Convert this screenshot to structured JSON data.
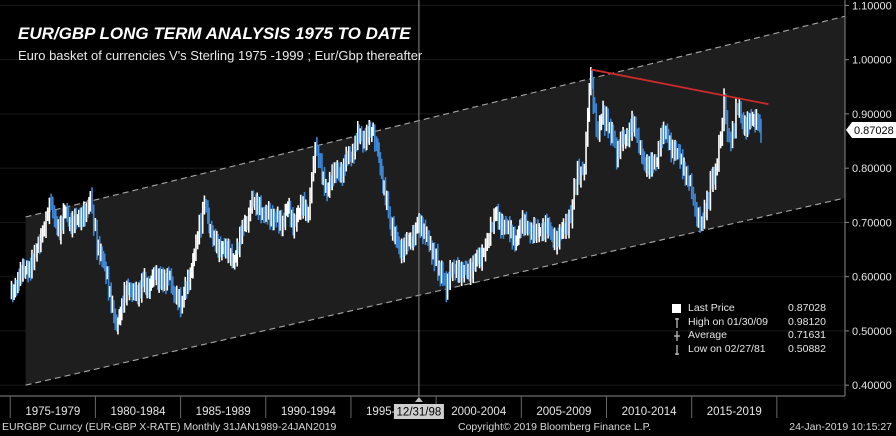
{
  "chart_data": {
    "type": "line",
    "title": "EUR/GBP LONG TERM ANALYSIS 1975 TO DATE",
    "subtitle": "Euro basket of currencies V's Sterling 1975 -1999 ; Eur/Gbp thereafter",
    "ylim": [
      0.38,
      1.11
    ],
    "yticks": [
      "0.40000",
      "0.50000",
      "0.60000",
      "0.70000",
      "0.80000",
      "0.90000",
      "1.00000",
      "1.10000"
    ],
    "x_period_labels": [
      "1975-1979",
      "1980-1984",
      "1985-1989",
      "1990-1994",
      "1995-1999",
      "2000-2004",
      "2005-2009",
      "2010-2014",
      "2015-2019"
    ],
    "cursor_label": "12/31/98",
    "last_price_tag": "0.87028",
    "series": [
      {
        "name": "EURGBP Curncy",
        "points": [
          [
            1975.0,
            0.565
          ],
          [
            1975.3,
            0.585
          ],
          [
            1975.6,
            0.6
          ],
          [
            1975.9,
            0.615
          ],
          [
            1976.2,
            0.62
          ],
          [
            1976.5,
            0.64
          ],
          [
            1976.8,
            0.675
          ],
          [
            1977.0,
            0.69
          ],
          [
            1977.2,
            0.72
          ],
          [
            1977.4,
            0.74
          ],
          [
            1977.6,
            0.7
          ],
          [
            1977.9,
            0.69
          ],
          [
            1978.2,
            0.72
          ],
          [
            1978.5,
            0.695
          ],
          [
            1978.8,
            0.71
          ],
          [
            1979.1,
            0.7
          ],
          [
            1979.4,
            0.72
          ],
          [
            1979.7,
            0.745
          ],
          [
            1979.9,
            0.7
          ],
          [
            1980.1,
            0.66
          ],
          [
            1980.4,
            0.63
          ],
          [
            1980.7,
            0.6
          ],
          [
            1981.0,
            0.545
          ],
          [
            1981.17,
            0.508
          ],
          [
            1981.4,
            0.53
          ],
          [
            1981.7,
            0.56
          ],
          [
            1982.0,
            0.58
          ],
          [
            1982.4,
            0.565
          ],
          [
            1982.8,
            0.59
          ],
          [
            1983.2,
            0.58
          ],
          [
            1983.5,
            0.605
          ],
          [
            1983.9,
            0.59
          ],
          [
            1984.3,
            0.6
          ],
          [
            1984.7,
            0.565
          ],
          [
            1985.0,
            0.545
          ],
          [
            1985.2,
            0.565
          ],
          [
            1985.5,
            0.6
          ],
          [
            1985.8,
            0.64
          ],
          [
            1986.0,
            0.68
          ],
          [
            1986.2,
            0.7
          ],
          [
            1986.4,
            0.74
          ],
          [
            1986.6,
            0.71
          ],
          [
            1986.9,
            0.67
          ],
          [
            1987.2,
            0.65
          ],
          [
            1987.5,
            0.66
          ],
          [
            1987.8,
            0.64
          ],
          [
            1988.1,
            0.63
          ],
          [
            1988.4,
            0.66
          ],
          [
            1988.7,
            0.69
          ],
          [
            1989.0,
            0.71
          ],
          [
            1989.2,
            0.75
          ],
          [
            1989.5,
            0.73
          ],
          [
            1989.8,
            0.71
          ],
          [
            1990.1,
            0.725
          ],
          [
            1990.4,
            0.7
          ],
          [
            1990.7,
            0.71
          ],
          [
            1991.0,
            0.7
          ],
          [
            1991.3,
            0.725
          ],
          [
            1991.6,
            0.7
          ],
          [
            1991.9,
            0.715
          ],
          [
            1992.2,
            0.73
          ],
          [
            1992.5,
            0.72
          ],
          [
            1992.7,
            0.78
          ],
          [
            1992.9,
            0.84
          ],
          [
            1993.1,
            0.82
          ],
          [
            1993.3,
            0.79
          ],
          [
            1993.6,
            0.76
          ],
          [
            1993.9,
            0.78
          ],
          [
            1994.2,
            0.8
          ],
          [
            1994.5,
            0.79
          ],
          [
            1994.8,
            0.82
          ],
          [
            1995.1,
            0.83
          ],
          [
            1995.4,
            0.86
          ],
          [
            1995.7,
            0.85
          ],
          [
            1996.0,
            0.87
          ],
          [
            1996.3,
            0.86
          ],
          [
            1996.5,
            0.84
          ],
          [
            1996.8,
            0.79
          ],
          [
            1997.1,
            0.74
          ],
          [
            1997.3,
            0.7
          ],
          [
            1997.6,
            0.67
          ],
          [
            1997.9,
            0.65
          ],
          [
            1998.2,
            0.66
          ],
          [
            1998.5,
            0.66
          ],
          [
            1998.8,
            0.69
          ],
          [
            1999.0,
            0.705
          ],
          [
            1999.3,
            0.68
          ],
          [
            1999.6,
            0.66
          ],
          [
            1999.9,
            0.64
          ],
          [
            2000.1,
            0.62
          ],
          [
            2000.4,
            0.6
          ],
          [
            2000.6,
            0.575
          ],
          [
            2000.9,
            0.61
          ],
          [
            2001.2,
            0.62
          ],
          [
            2001.5,
            0.6
          ],
          [
            2001.8,
            0.615
          ],
          [
            2002.1,
            0.615
          ],
          [
            2002.4,
            0.63
          ],
          [
            2002.7,
            0.64
          ],
          [
            2002.9,
            0.655
          ],
          [
            2003.1,
            0.675
          ],
          [
            2003.3,
            0.7
          ],
          [
            2003.5,
            0.715
          ],
          [
            2003.8,
            0.7
          ],
          [
            2004.1,
            0.69
          ],
          [
            2004.4,
            0.68
          ],
          [
            2004.7,
            0.67
          ],
          [
            2005.0,
            0.69
          ],
          [
            2005.3,
            0.7
          ],
          [
            2005.6,
            0.68
          ],
          [
            2005.9,
            0.68
          ],
          [
            2006.2,
            0.69
          ],
          [
            2006.5,
            0.69
          ],
          [
            2006.8,
            0.675
          ],
          [
            2007.1,
            0.67
          ],
          [
            2007.4,
            0.68
          ],
          [
            2007.7,
            0.7
          ],
          [
            2007.9,
            0.71
          ],
          [
            2008.1,
            0.76
          ],
          [
            2008.3,
            0.79
          ],
          [
            2008.5,
            0.79
          ],
          [
            2008.7,
            0.8
          ],
          [
            2008.9,
            0.9
          ],
          [
            2009.08,
            0.981
          ],
          [
            2009.3,
            0.9
          ],
          [
            2009.5,
            0.86
          ],
          [
            2009.7,
            0.9
          ],
          [
            2009.9,
            0.89
          ],
          [
            2010.1,
            0.88
          ],
          [
            2010.4,
            0.86
          ],
          [
            2010.6,
            0.82
          ],
          [
            2010.9,
            0.85
          ],
          [
            2011.2,
            0.86
          ],
          [
            2011.5,
            0.88
          ],
          [
            2011.8,
            0.86
          ],
          [
            2012.0,
            0.83
          ],
          [
            2012.3,
            0.81
          ],
          [
            2012.6,
            0.8
          ],
          [
            2012.9,
            0.81
          ],
          [
            2013.2,
            0.86
          ],
          [
            2013.5,
            0.86
          ],
          [
            2013.8,
            0.84
          ],
          [
            2014.1,
            0.83
          ],
          [
            2014.4,
            0.81
          ],
          [
            2014.7,
            0.79
          ],
          [
            2015.0,
            0.76
          ],
          [
            2015.2,
            0.72
          ],
          [
            2015.4,
            0.705
          ],
          [
            2015.6,
            0.7
          ],
          [
            2015.9,
            0.73
          ],
          [
            2016.1,
            0.77
          ],
          [
            2016.4,
            0.79
          ],
          [
            2016.6,
            0.84
          ],
          [
            2016.8,
            0.88
          ],
          [
            2016.9,
            0.93
          ],
          [
            2017.1,
            0.86
          ],
          [
            2017.3,
            0.85
          ],
          [
            2017.5,
            0.88
          ],
          [
            2017.7,
            0.92
          ],
          [
            2017.9,
            0.89
          ],
          [
            2018.2,
            0.88
          ],
          [
            2018.5,
            0.885
          ],
          [
            2018.8,
            0.89
          ],
          [
            2019.0,
            0.88
          ],
          [
            2019.07,
            0.87
          ]
        ]
      }
    ],
    "regression_channel": {
      "upper": [
        [
          1975.9,
          0.71
        ],
        [
          2024.0,
          1.08
        ]
      ],
      "lower": [
        [
          1975.9,
          0.4
        ],
        [
          2024.0,
          0.745
        ]
      ],
      "median": [
        [
          1975.9,
          0.5
        ],
        [
          2024.0,
          0.95
        ]
      ]
    },
    "trendline": [
      [
        2009.08,
        0.982
      ],
      [
        2019.5,
        0.918
      ]
    ],
    "colors": {
      "series_up": "#ffffff",
      "series_down": "#3d87d6",
      "trendline": "#cc2a2a",
      "channel": "#a8a8a8",
      "channel_fill": "#1e1e1e",
      "cursor": "#8a8a8a",
      "axis_text": "#e6e6e6"
    }
  },
  "legend": [
    {
      "marker": "box-icon",
      "label": "Last Price",
      "value": "0.87028"
    },
    {
      "marker": "high-marker-icon",
      "label": "High on 01/30/09",
      "value": "0.98120"
    },
    {
      "marker": "average-marker-icon",
      "label": "Average",
      "value": "0.71631"
    },
    {
      "marker": "low-marker-icon",
      "label": "Low on 02/27/81",
      "value": "0.50882"
    }
  ],
  "footer": {
    "left": "EURGBP Curncy (EUR-GBP X-RATE)  Monthly 31JAN1989-24JAN2019",
    "center": "Copyright© 2019 Bloomberg Finance L.P.",
    "right": "24-Jan-2019 10:15:27"
  }
}
